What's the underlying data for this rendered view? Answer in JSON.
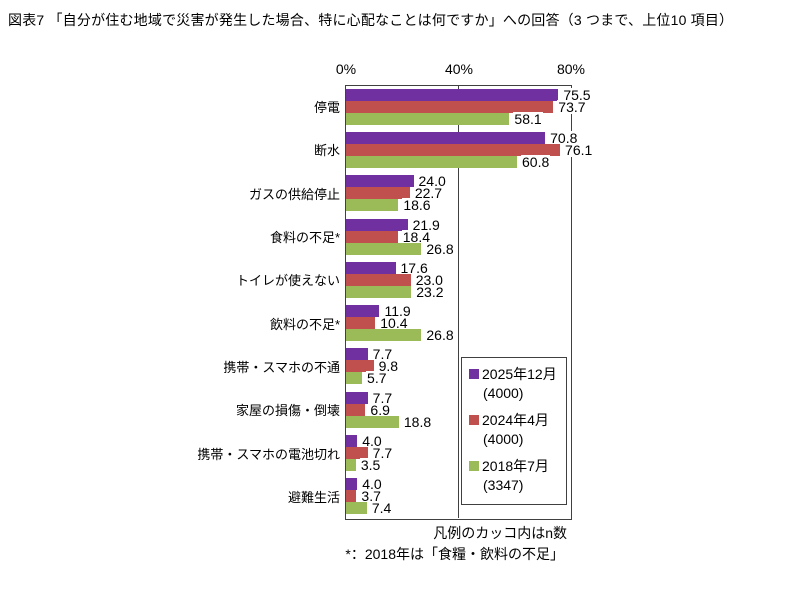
{
  "title": "図表7 「自分が住む地域で災害が発生した場合、特に心配なことは何ですか」への回答（3 つまで、上位10 項目）",
  "chart_data": {
    "type": "bar",
    "orientation": "horizontal",
    "title": "図表7 「自分が住む地域で災害が発生した場合、特に心配なことは何ですか」への回答（3 つまで、上位10 項目）",
    "xlim": [
      0,
      80
    ],
    "x_ticks": [
      "0%",
      "40%",
      "80%"
    ],
    "x_tick_values": [
      0,
      40,
      80
    ],
    "grid": "vertical gridlines at 40% and 80%, axis labels on top",
    "legend_position": "inside right, boxed",
    "categories": [
      "停電",
      "断水",
      "ガスの供給停止",
      "食料の不足*",
      "トイレが使えない",
      "飲料の不足*",
      "携帯・スマホの不通",
      "家屋の損傷・倒壊",
      "携帯・スマホの電池切れ",
      "避難生活"
    ],
    "series": [
      {
        "name": "2025年12月",
        "n_label": "(4000)",
        "color": "#7030A0",
        "values": [
          75.5,
          70.8,
          24.0,
          21.9,
          17.6,
          11.9,
          7.7,
          7.7,
          4.0,
          4.0
        ]
      },
      {
        "name": "2024年4月",
        "n_label": "(4000)",
        "color": "#C0504D",
        "values": [
          73.7,
          76.1,
          22.7,
          18.4,
          23.0,
          10.4,
          9.8,
          6.9,
          7.7,
          3.7
        ]
      },
      {
        "name": "2018年7月",
        "n_label": "(3347)",
        "color": "#9BBB59",
        "values": [
          58.1,
          60.8,
          18.6,
          26.8,
          23.2,
          26.8,
          5.7,
          18.8,
          3.5,
          7.4
        ]
      }
    ]
  },
  "footnotes": {
    "legend_note": "凡例のカッコ内はn数",
    "asterisk_note": "*：2018年は「食糧・飲料の不足」"
  }
}
